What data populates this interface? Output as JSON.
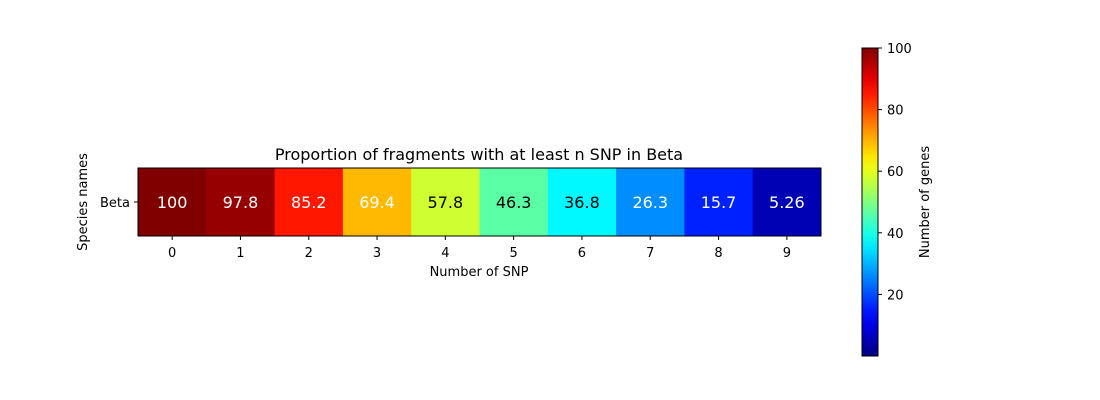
{
  "chart_data": {
    "type": "heatmap",
    "title": "Proportion of fragments with at least n SNP in Beta",
    "xlabel": "Number of SNP",
    "ylabel": "Species names",
    "x": [
      "0",
      "1",
      "2",
      "3",
      "4",
      "5",
      "6",
      "7",
      "8",
      "9"
    ],
    "y": [
      "Beta"
    ],
    "values": [
      [
        100,
        97.8,
        85.2,
        69.4,
        57.8,
        46.3,
        36.8,
        26.3,
        15.7,
        5.26
      ]
    ],
    "value_labels": [
      "100",
      "97.8",
      "85.2",
      "69.4",
      "57.8",
      "46.3",
      "36.8",
      "26.3",
      "15.7",
      "5.26"
    ],
    "colormap": "jet",
    "colorbar": {
      "label": "Number of genes",
      "range": [
        0,
        100
      ],
      "ticks": [
        "20",
        "40",
        "60",
        "80",
        "100"
      ]
    }
  }
}
